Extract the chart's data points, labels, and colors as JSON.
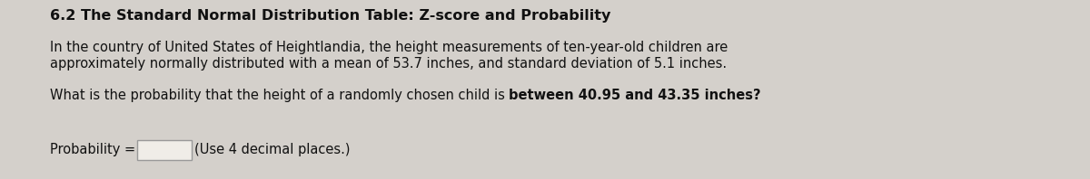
{
  "title": "6.2 The Standard Normal Distribution Table: Z-score and Probability",
  "paragraph1_line1": "In the country of United States of Heightlandia, the height measurements of ten-year-old children are",
  "paragraph1_line2": "approximately normally distributed with a mean of 53.7 inches, and standard deviation of 5.1 inches.",
  "paragraph2_normal": "What is the probability that the height of a randomly chosen child is ",
  "paragraph2_bold": "between 40.95 and 43.35 inches?",
  "label": "Probability =",
  "hint": "(Use 4 decimal places.)",
  "bg_color": "#d4d0cb",
  "text_color": "#111111",
  "title_fontsize": 11.5,
  "body_fontsize": 10.5,
  "box_color": "#f0ede8"
}
